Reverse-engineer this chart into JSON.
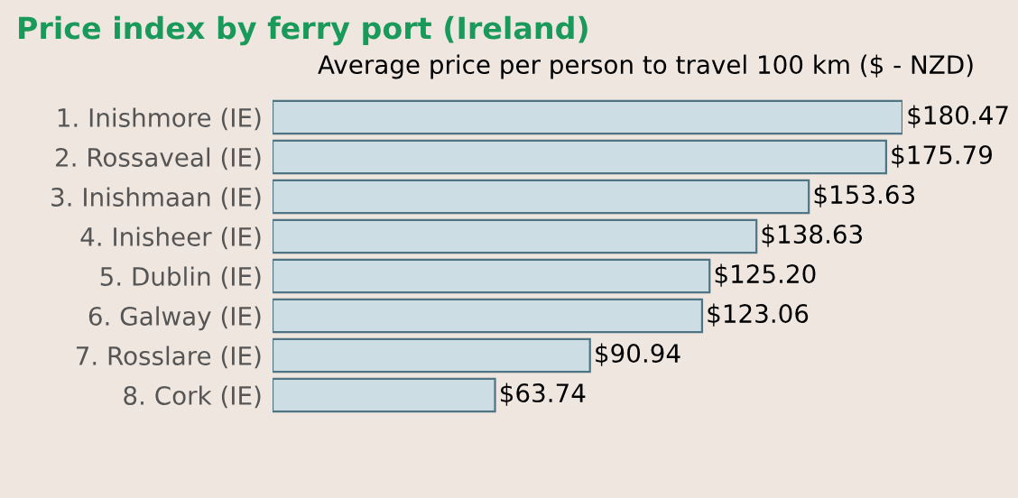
{
  "chart_data": {
    "type": "bar",
    "orientation": "horizontal",
    "title": "Price index by ferry port (Ireland)",
    "subtitle": "Average price per person to travel 100 km ($ - NZD)",
    "categories": [
      "1. Inishmore (IE)",
      "2. Rossaveal (IE)",
      "3. Inishmaan (IE)",
      "4. Inisheer (IE)",
      "5. Dublin (IE)",
      "6. Galway (IE)",
      "7. Rosslare (IE)",
      "8. Cork (IE)"
    ],
    "values": [
      180.47,
      175.79,
      153.63,
      138.63,
      125.2,
      123.06,
      90.94,
      63.74
    ],
    "value_labels": [
      "$180.47",
      "$175.79",
      "$153.63",
      "$138.63",
      "$125.20",
      "$123.06",
      "$90.94",
      "$63.74"
    ],
    "color": "#ccdde3",
    "grid": false,
    "legend": false
  }
}
